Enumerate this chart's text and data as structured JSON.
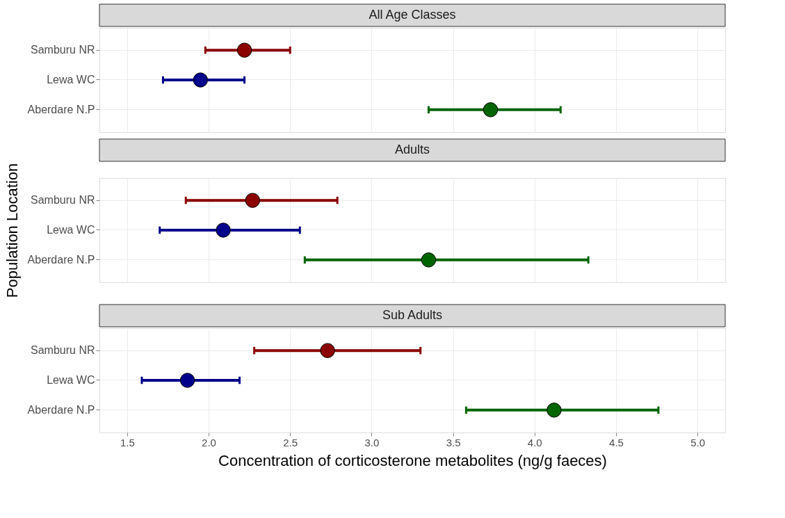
{
  "chart_data": [
    {
      "type": "scatter",
      "orientation": "horizontal",
      "title": "All Age Classes",
      "categories": [
        "Samburu NR",
        "Lewa WC",
        "Aberdare N.P"
      ],
      "values": [
        2.22,
        1.95,
        3.73
      ],
      "colors": [
        "#8b0000",
        "#00008b",
        "#006400"
      ],
      "errors": [
        [
          1.98,
          2.5
        ],
        [
          1.72,
          2.22
        ],
        [
          3.35,
          4.16
        ]
      ],
      "xlim": [
        1.33,
        5.17
      ],
      "xticks": [
        1.5,
        2,
        2.5,
        3,
        3.5,
        4,
        4.5,
        5
      ],
      "tick_labels": "y",
      "grid": true,
      "marker": "circle"
    },
    {
      "type": "scatter",
      "orientation": "horizontal",
      "title": "Adults",
      "ylabel": "Population Location",
      "categories": [
        "Samburu NR",
        "Lewa WC",
        "Aberdare N.P"
      ],
      "values": [
        2.27,
        2.09,
        3.35
      ],
      "colors": [
        "#8b0000",
        "#00008b",
        "#006400"
      ],
      "errors": [
        [
          1.86,
          2.79
        ],
        [
          1.7,
          2.56
        ],
        [
          2.59,
          4.33
        ]
      ],
      "xlim": [
        1.33,
        5.17
      ],
      "xticks": [
        1.5,
        2,
        2.5,
        3,
        3.5,
        4,
        4.5,
        5
      ],
      "tick_labels": "y",
      "grid": true,
      "marker": "circle"
    },
    {
      "type": "scatter",
      "orientation": "horizontal",
      "title": "Sub Adults",
      "xlabel": "Concentration of corticosterone metabolites (ng/g faeces)",
      "categories": [
        "Samburu NR",
        "Lewa WC",
        "Aberdare N.P"
      ],
      "values": [
        2.73,
        1.87,
        4.12
      ],
      "colors": [
        "#8b0000",
        "#00008b",
        "#006400"
      ],
      "errors": [
        [
          2.28,
          3.3
        ],
        [
          1.59,
          2.19
        ],
        [
          3.58,
          4.76
        ]
      ],
      "xlim": [
        1.33,
        5.17
      ],
      "xticks": [
        1.5,
        {
          "value": 2,
          "label": "2.0"
        },
        2.5,
        {
          "value": 3,
          "label": "3.0"
        },
        3.5,
        {
          "value": 4,
          "label": "4.0"
        },
        4.5,
        {
          "value": 5,
          "label": "5.0"
        }
      ],
      "grid": true,
      "marker": "circle"
    }
  ]
}
